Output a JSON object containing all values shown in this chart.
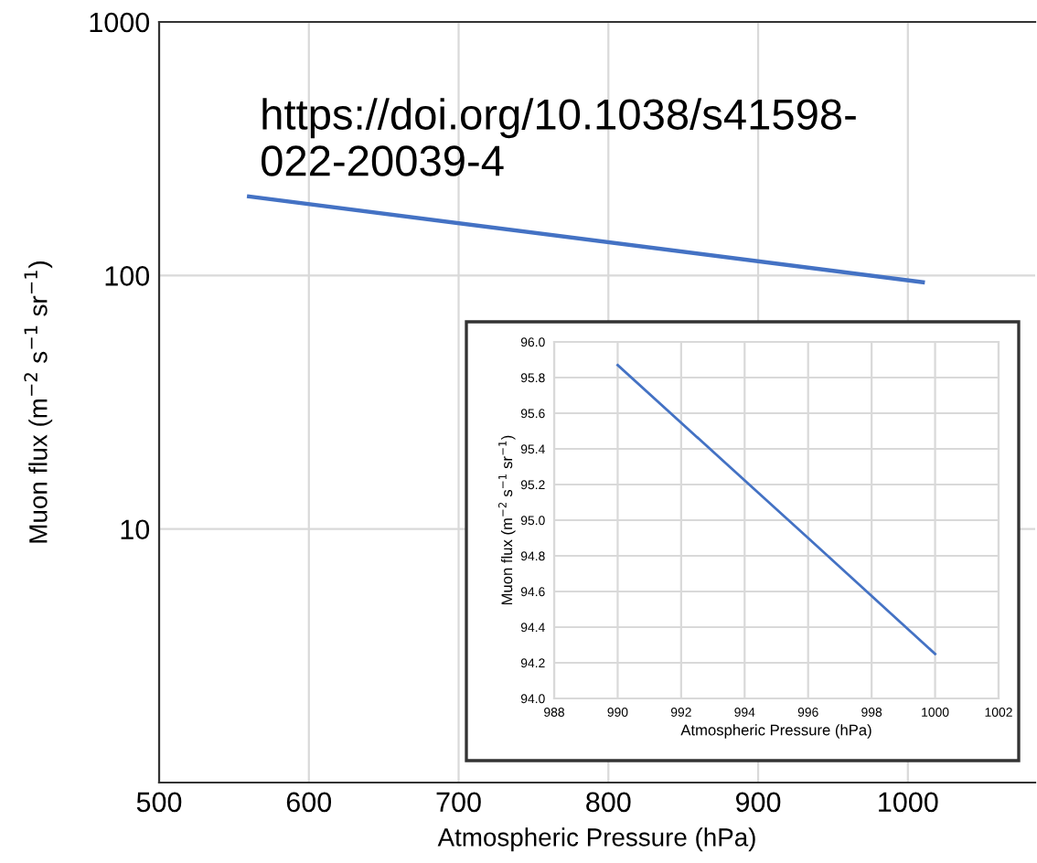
{
  "chart_data": [
    {
      "type": "line",
      "xlabel": "Atmospheric Pressure (hPa)",
      "ylabel": "Muon flux (m$^{−2}$ s$^{−1}$ sr$^{−1}$)",
      "log": "y",
      "xlim": [
        500,
        1085
      ],
      "xticks": [
        500,
        600,
        700,
        800,
        900,
        1000
      ],
      "ylim": [
        1,
        1000
      ],
      "yticks": [
        {
          "value": 1,
          "label": null
        },
        10,
        100,
        1000
      ],
      "grid": true,
      "marker": "none",
      "line_style": "solid",
      "series": [
        {
          "color": "#4472c4",
          "x": [
            560,
            1010
          ],
          "values": [
            205,
            94
          ]
        }
      ],
      "annotations": [
        "https://doi.org/10.1038/s41598-\n022-20039-4"
      ]
    },
    {
      "type": "line",
      "xlabel": "Atmospheric Pressure (hPa)",
      "ylabel": "Muon flux (m$^{−2}$ s$^{−1}$ sr$^{−1}$)",
      "xlim": [
        988,
        1002
      ],
      "xticks": [
        988,
        990,
        992,
        994,
        996,
        998,
        1000,
        1002
      ],
      "ylim": [
        94.0,
        96.0
      ],
      "yticks": [
        {
          "value": 94.0,
          "label": "94.0"
        },
        94.2,
        94.4,
        94.6,
        94.8,
        {
          "value": 95.0,
          "label": "95.0"
        },
        95.2,
        95.4,
        95.6,
        95.8,
        {
          "value": 96.0,
          "label": "96.0"
        }
      ],
      "grid": true,
      "marker": "none",
      "line_style": "solid",
      "series": [
        {
          "color": "#4472c4",
          "x": [
            990,
            996,
            1000
          ],
          "values": [
            95.87,
            94.9,
            94.25
          ]
        }
      ]
    }
  ]
}
